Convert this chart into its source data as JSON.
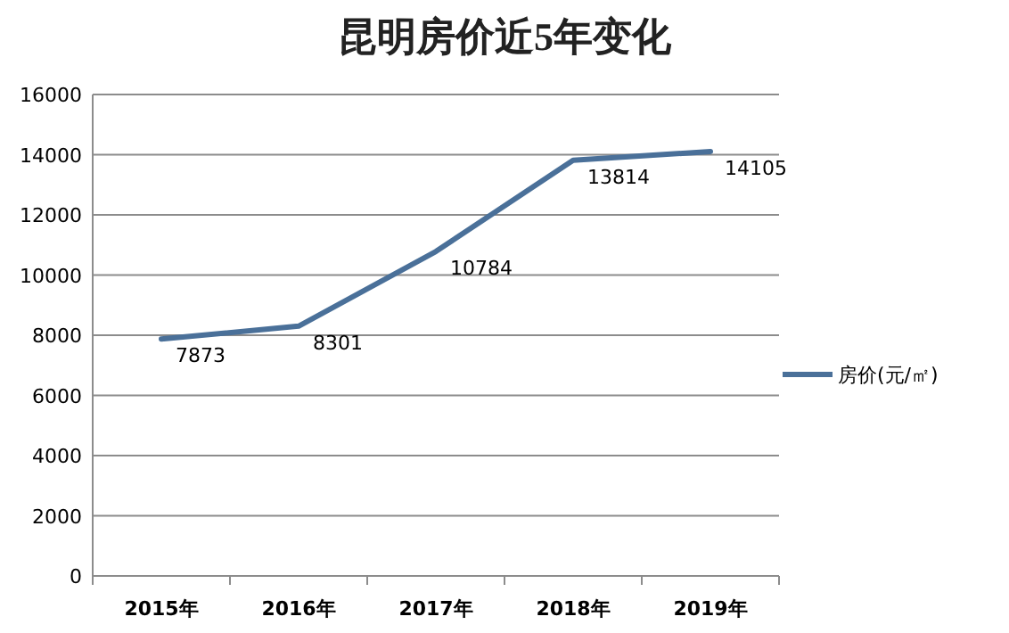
{
  "chart_data": {
    "type": "line",
    "title": "昆明房价近5年变化",
    "categories": [
      "2015年",
      "2016年",
      "2017年",
      "2018年",
      "2019年"
    ],
    "series": [
      {
        "name": "房价(元/㎡)",
        "color": "#4a7099",
        "values": [
          7873,
          8301,
          10784,
          13814,
          14105
        ]
      }
    ],
    "ylim": [
      0,
      16000
    ],
    "yticks": [
      0,
      2000,
      4000,
      6000,
      8000,
      10000,
      12000,
      14000,
      16000
    ],
    "grid": "y",
    "legend": "right",
    "data_labels": true,
    "marker": "none",
    "line_style": "solid"
  }
}
